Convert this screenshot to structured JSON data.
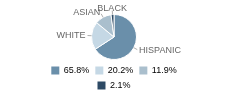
{
  "chart_data": {
    "type": "pie",
    "categories": [
      "HISPANIC",
      "WHITE",
      "ASIAN",
      "BLACK"
    ],
    "values": [
      65.8,
      20.2,
      11.9,
      2.1
    ],
    "value_labels": [
      "65.8%",
      "20.2%",
      "11.9%",
      "2.1%"
    ],
    "colors": [
      "#6a8faa",
      "#c5d8e5",
      "#aabfcd",
      "#2d4a65"
    ],
    "legend": "bottom"
  }
}
